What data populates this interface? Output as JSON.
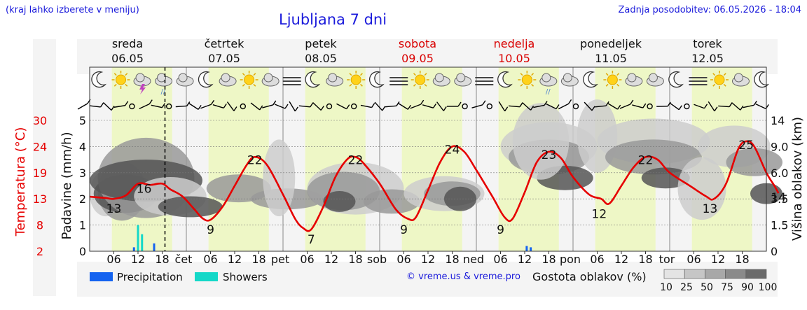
{
  "header": {
    "note": "(kraj lahko izberete v meniju)",
    "title": "Ljubljana 7 dni",
    "updated": "Zadnja posodobitev: 06.05.2026 - 18:04"
  },
  "credit": "© vreme.us & vreme.pro",
  "colors": {
    "temp_line": "#e60000",
    "weekend": "#d90000",
    "day_band": "#eef7c6",
    "night_band": "#f4f4f4",
    "precipitation": "#1463f0",
    "showers": "#14d8c8",
    "cloud_dark": "#555555",
    "cloud_mid": "#999999",
    "cloud_light": "#cccccc"
  },
  "chart_data": {
    "type": "line",
    "days": [
      {
        "name": "sreda",
        "date": "06.05",
        "short": "",
        "weekend": false
      },
      {
        "name": "četrtek",
        "date": "07.05",
        "short": "čet",
        "weekend": false
      },
      {
        "name": "petek",
        "date": "08.05",
        "short": "pet",
        "weekend": false
      },
      {
        "name": "sobota",
        "date": "09.05",
        "short": "sob",
        "weekend": true
      },
      {
        "name": "nedelja",
        "date": "10.05",
        "short": "ned",
        "weekend": true
      },
      {
        "name": "ponedeljek",
        "date": "11.05",
        "short": "pon",
        "weekend": false
      },
      {
        "name": "torek",
        "date": "12.05",
        "short": "tor",
        "weekend": false
      }
    ],
    "hour_ticks": [
      "06",
      "12",
      "18"
    ],
    "x_range_hours": [
      0,
      168
    ],
    "now_hour": 18,
    "left_axis": {
      "label": "Padavine (mm/h)",
      "ticks": [
        "0",
        "1",
        "2",
        "3",
        "4",
        "5"
      ],
      "range": [
        0,
        5
      ]
    },
    "temp_axis": {
      "label": "Temperatura (°C)",
      "ticks": [
        "2",
        "8",
        "13",
        "19",
        "24",
        "30"
      ]
    },
    "right_axis": {
      "label": "Višina oblakov (km)",
      "ticks": [
        "0",
        "1.5",
        "3.5",
        "6.0",
        "9.0",
        "14"
      ]
    },
    "temperature": {
      "name": "Temperatura",
      "points": [
        [
          0,
          13.5
        ],
        [
          4,
          13.2
        ],
        [
          6,
          13
        ],
        [
          9,
          13.8
        ],
        [
          12,
          16.5
        ],
        [
          15,
          16.2
        ],
        [
          18,
          16.5
        ],
        [
          20,
          15.2
        ],
        [
          23,
          13.6
        ],
        [
          26,
          11
        ],
        [
          28,
          9.3
        ],
        [
          30,
          9
        ],
        [
          33,
          11.5
        ],
        [
          36,
          16
        ],
        [
          39,
          20.5
        ],
        [
          41,
          22
        ],
        [
          44,
          20.5
        ],
        [
          48,
          14
        ],
        [
          51,
          9.2
        ],
        [
          53,
          7.3
        ],
        [
          55,
          7
        ],
        [
          58,
          11.5
        ],
        [
          61,
          18
        ],
        [
          64,
          21.6
        ],
        [
          66,
          22
        ],
        [
          68,
          20.8
        ],
        [
          72,
          16.5
        ],
        [
          76,
          11
        ],
        [
          79,
          9.2
        ],
        [
          81,
          9.5
        ],
        [
          84,
          15
        ],
        [
          87,
          21
        ],
        [
          90,
          24
        ],
        [
          93,
          23
        ],
        [
          96,
          19.5
        ],
        [
          100,
          13.5
        ],
        [
          103,
          9.5
        ],
        [
          105,
          9.2
        ],
        [
          108,
          14.5
        ],
        [
          111,
          21
        ],
        [
          114,
          23
        ],
        [
          117,
          21.8
        ],
        [
          120,
          18
        ],
        [
          124,
          14
        ],
        [
          127,
          13
        ],
        [
          129,
          12.1
        ],
        [
          132,
          16
        ],
        [
          135,
          20
        ],
        [
          138,
          22
        ],
        [
          141,
          21.5
        ],
        [
          144,
          19
        ],
        [
          149,
          16
        ],
        [
          153,
          13.6
        ],
        [
          155,
          13
        ],
        [
          158,
          16.5
        ],
        [
          161,
          23.5
        ],
        [
          163,
          25.2
        ],
        [
          165,
          24
        ],
        [
          168,
          19
        ],
        [
          170,
          16
        ],
        [
          171,
          14.3
        ]
      ]
    },
    "temp_labels": [
      {
        "hour": 6,
        "value": "13"
      },
      {
        "hour": 13.5,
        "value": "16"
      },
      {
        "hour": 30,
        "value": "9"
      },
      {
        "hour": 41,
        "value": "22"
      },
      {
        "hour": 55,
        "value": "7"
      },
      {
        "hour": 66,
        "value": "22"
      },
      {
        "hour": 78,
        "value": "9"
      },
      {
        "hour": 90,
        "value": "24"
      },
      {
        "hour": 102,
        "value": "9"
      },
      {
        "hour": 114,
        "value": "23"
      },
      {
        "hour": 126.5,
        "value": "12"
      },
      {
        "hour": 138,
        "value": "22"
      },
      {
        "hour": 154,
        "value": "13"
      },
      {
        "hour": 163,
        "value": "25"
      },
      {
        "hour": 171,
        "value": "14"
      }
    ],
    "precipitation": {
      "name": "Precipitation",
      "bars": [
        [
          11,
          0.15
        ],
        [
          16,
          0.3
        ],
        [
          108.5,
          0.2
        ],
        [
          109.5,
          0.15
        ]
      ]
    },
    "showers": {
      "name": "Showers",
      "bars": [
        [
          12,
          1.0
        ],
        [
          13,
          0.65
        ]
      ]
    },
    "cloud_density_legend": {
      "title": "Gostota oblakov (%)",
      "levels": [
        "10",
        "25",
        "50",
        "75",
        "90",
        "100"
      ]
    },
    "wind_symbols_row": "yes",
    "weather_icons": [
      "moon-icon",
      "sun-icon",
      "thunder-icon",
      "rain-icon",
      "cloud-icon",
      "moon-icon",
      "cloud-icon",
      "sun-icon",
      "cloud-icon",
      "fog-icon",
      "moon-icon",
      "cloud-icon",
      "sun-icon",
      "moon-icon",
      "fog-icon",
      "sun-icon",
      "cloud-icon",
      "cloud-icon",
      "fog-icon",
      "moon-icon",
      "sun-icon",
      "rain-icon",
      "cloud-icon",
      "moon-icon",
      "sun-icon",
      "cloud-icon",
      "cloud-icon",
      "moon-icon",
      "fog-icon",
      "sun-icon",
      "cloud-icon",
      "moon-icon"
    ]
  }
}
